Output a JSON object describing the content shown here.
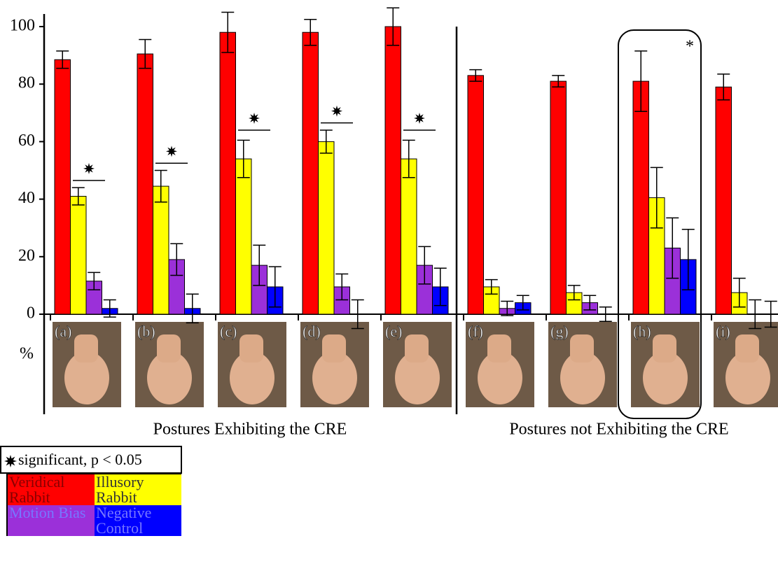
{
  "chart_data": {
    "type": "bar",
    "categories": [
      "(a)",
      "(b)",
      "(c)",
      "(d)",
      "(e)",
      "(f)",
      "(g)",
      "(h)",
      "(i)"
    ],
    "series": [
      {
        "name": "Veridical Rabbit",
        "color": "#ff0000",
        "values": [
          88.5,
          90.5,
          98,
          98,
          100,
          83,
          81,
          81,
          79
        ],
        "errors": [
          3,
          5,
          7,
          4.5,
          6.5,
          2,
          2,
          10.5,
          4.5
        ]
      },
      {
        "name": "Illusory Rabbit",
        "color": "#ffff00",
        "values": [
          41,
          44.5,
          54,
          60,
          54,
          9.5,
          7.5,
          40.5,
          7.5
        ],
        "errors": [
          3,
          5.5,
          6.5,
          4,
          6.5,
          2.5,
          2.5,
          10.5,
          5
        ]
      },
      {
        "name": "Motion Bias",
        "color": "#9b30d9",
        "values": [
          11.5,
          19,
          17,
          9.5,
          17,
          2,
          4,
          23,
          0
        ],
        "errors": [
          3,
          5.5,
          7,
          4.5,
          6.5,
          2.5,
          2.5,
          10.5,
          5
        ]
      },
      {
        "name": "Negative Control",
        "color": "#0000ff",
        "values": [
          2,
          2,
          9.5,
          0,
          9.5,
          4,
          0,
          19,
          0
        ],
        "errors": [
          3,
          5,
          7,
          5,
          6.5,
          2.5,
          2.5,
          10.5,
          4.5
        ]
      }
    ],
    "significance_bars": [
      46.5,
      52.5,
      64,
      66.5,
      64,
      null,
      null,
      null,
      null
    ],
    "highlight_label": "*",
    "y_label": "%",
    "group_labels": [
      "Postures Exhibiting the CRE",
      "Postures not Exhibiting the CRE"
    ],
    "legend_note": "significant, p < 0.05",
    "ylim": [
      0,
      100
    ],
    "yticks": [
      0,
      20,
      40,
      60,
      80,
      100
    ]
  }
}
